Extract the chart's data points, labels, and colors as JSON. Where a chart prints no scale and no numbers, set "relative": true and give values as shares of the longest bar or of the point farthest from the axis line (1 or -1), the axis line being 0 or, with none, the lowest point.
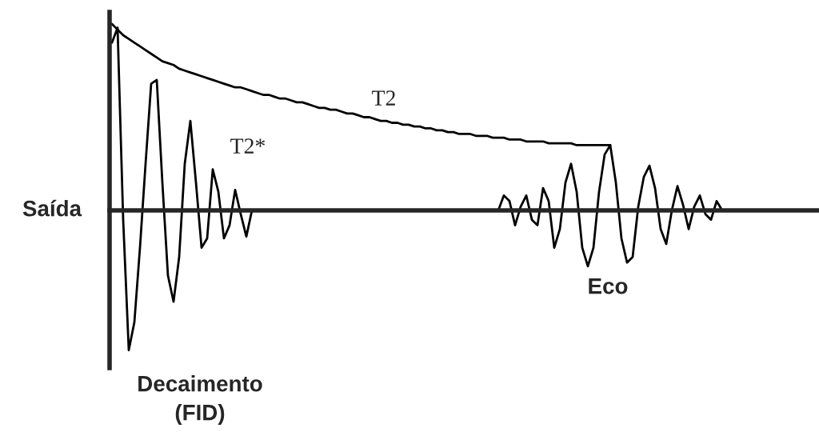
{
  "chart_data": {
    "type": "line",
    "relative": true,
    "ylabel": "Saída",
    "categories": [
      null,
      null,
      null,
      null,
      null,
      null,
      null,
      null,
      null,
      null,
      null,
      null,
      null,
      null,
      null,
      null,
      null,
      null,
      null,
      null,
      null,
      null,
      null,
      null,
      null,
      null,
      null,
      null,
      null,
      null,
      null,
      null,
      null,
      null,
      null,
      null,
      null,
      null,
      null,
      null,
      null,
      null,
      null,
      null,
      null,
      null,
      null,
      null,
      null,
      null,
      null,
      null,
      null,
      null,
      null,
      null,
      null,
      null,
      null,
      null,
      null,
      null,
      null,
      null,
      null,
      null,
      null,
      null,
      null,
      null,
      null,
      null,
      null,
      null,
      null,
      null,
      null,
      null,
      null,
      null,
      null,
      null,
      null,
      null,
      null,
      null,
      null,
      null,
      null,
      null,
      null,
      null,
      null,
      null,
      null,
      null,
      null,
      null,
      null,
      null,
      null,
      null,
      null,
      null,
      null,
      null,
      null,
      null,
      null,
      null,
      null,
      null,
      null,
      null,
      null,
      null,
      null,
      null,
      null,
      null,
      null,
      null,
      null,
      null,
      null,
      null,
      null
    ],
    "series": [
      {
        "color": "#000000",
        "values": [
          0.9,
          0.98,
          -0.05,
          -0.75,
          -0.6,
          -0.2,
          0.25,
          0.68,
          0.7,
          0.15,
          -0.35,
          -0.49,
          -0.25,
          0.25,
          0.48,
          0.15,
          -0.2,
          -0.15,
          0.22,
          0.1,
          -0.15,
          -0.08,
          0.11,
          -0.02,
          -0.14,
          0,
          0,
          0,
          0,
          0,
          0,
          0,
          0,
          0,
          0,
          0,
          0,
          0,
          0,
          0,
          0,
          0,
          0,
          0,
          0,
          0,
          0,
          0,
          0,
          0,
          0,
          0,
          0,
          0,
          0,
          0,
          0,
          0,
          0,
          0,
          0,
          0,
          0,
          0,
          0,
          0,
          0,
          0,
          0,
          0,
          0.08,
          0.05,
          -0.08,
          0.02,
          0.08,
          -0.05,
          -0.08,
          0.12,
          0.05,
          -0.2,
          -0.1,
          0.15,
          0.25,
          0.1,
          -0.2,
          -0.3,
          -0.2,
          0.1,
          0.3,
          0.35,
          0.15,
          -0.15,
          -0.28,
          -0.25,
          0.02,
          0.18,
          0.24,
          0.12,
          -0.1,
          -0.18,
          0,
          0.13,
          0.03,
          -0.1,
          0.02,
          0.08,
          -0.02,
          -0.05,
          0.05,
          0,
          0,
          0,
          0,
          0,
          0,
          0,
          0,
          0,
          0,
          0,
          0,
          0,
          0,
          0,
          0,
          0,
          0
        ]
      },
      {
        "color": "#000000",
        "values": [
          1.0,
          0.97,
          0.94,
          0.92,
          0.9,
          0.88,
          0.86,
          0.84,
          0.82,
          0.8,
          0.79,
          0.78,
          0.76,
          0.75,
          0.74,
          0.73,
          0.72,
          0.71,
          0.7,
          0.69,
          0.68,
          0.67,
          0.66,
          0.66,
          0.65,
          0.64,
          0.63,
          0.62,
          0.62,
          0.61,
          0.6,
          0.6,
          0.59,
          0.58,
          0.58,
          0.57,
          0.56,
          0.55,
          0.55,
          0.54,
          0.54,
          0.53,
          0.52,
          0.52,
          0.51,
          0.5,
          0.5,
          0.49,
          0.48,
          0.48,
          0.47,
          0.47,
          0.46,
          0.46,
          0.45,
          0.45,
          0.44,
          0.44,
          0.43,
          0.43,
          0.42,
          0.42,
          0.41,
          0.41,
          0.41,
          0.4,
          0.4,
          0.4,
          0.39,
          0.39,
          0.39,
          0.38,
          0.38,
          0.38,
          0.37,
          0.37,
          0.37,
          0.37,
          0.36,
          0.36,
          0.36,
          0.36,
          0.36,
          0.35,
          0.35,
          0.35,
          0.35,
          0.35,
          0.35,
          0.35,
          null,
          null,
          null,
          null,
          null,
          null,
          null,
          null,
          null,
          null,
          null,
          null,
          null,
          null,
          null,
          null,
          null,
          null,
          null,
          null,
          null,
          null,
          null,
          null,
          null,
          null,
          null,
          null,
          null,
          null,
          null,
          null,
          null,
          null,
          null,
          null,
          null
        ]
      }
    ],
    "annotations": [
      "T2",
      "T2*",
      "Eco",
      "Decaimento\n(FID)"
    ]
  }
}
